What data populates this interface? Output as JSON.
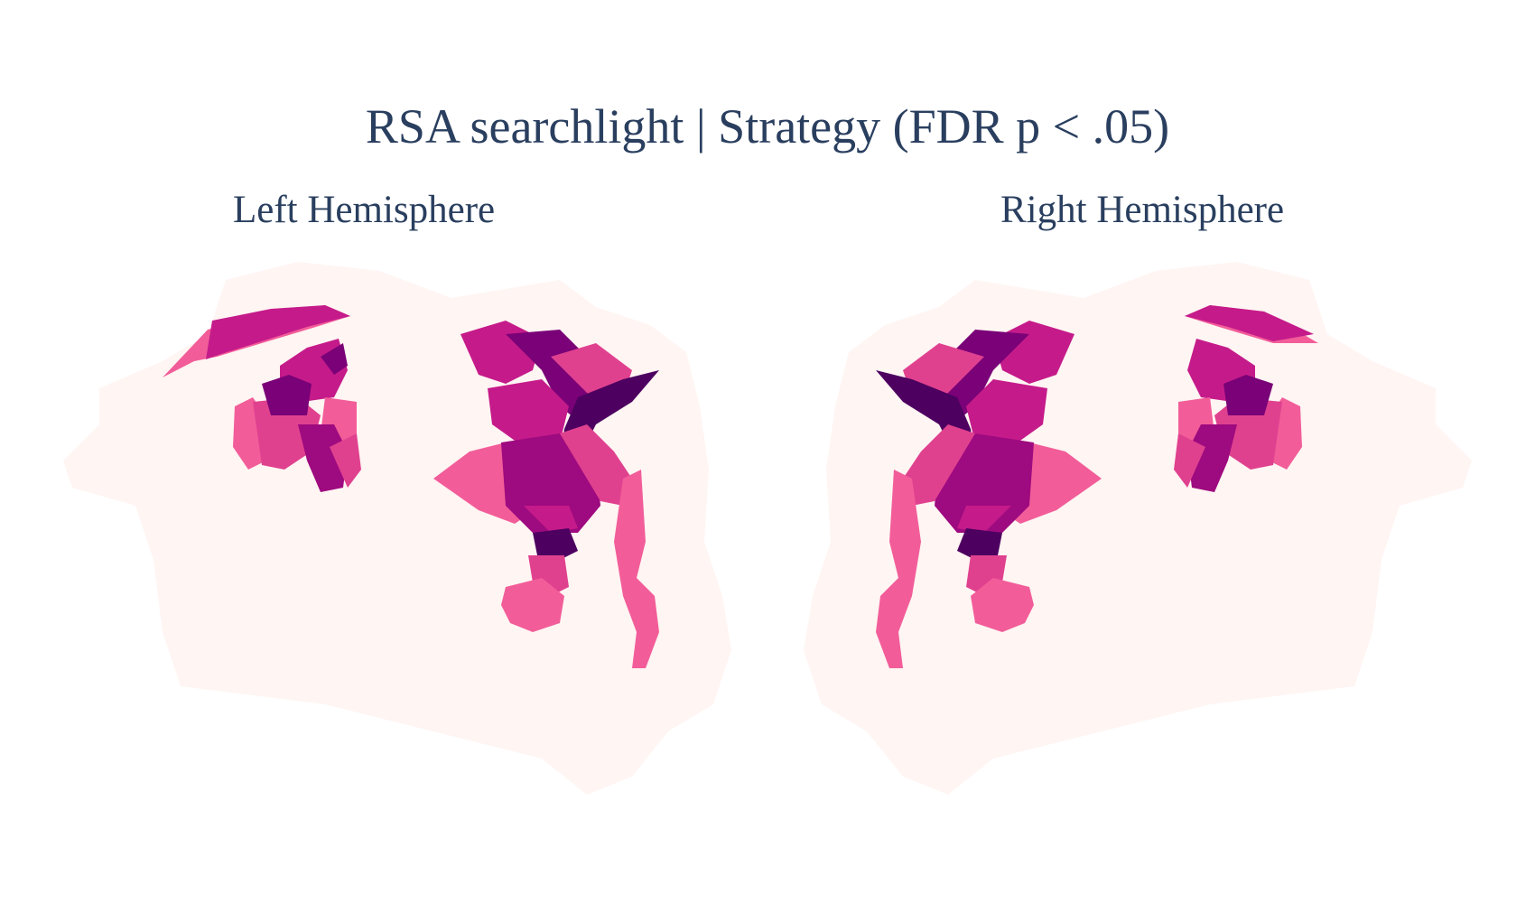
{
  "title": "RSA searchlight | Strategy (FDR p < .05)",
  "panels": [
    {
      "subtitle": "Left Hemisphere"
    },
    {
      "subtitle": "Right Hemisphere"
    }
  ],
  "colors": {
    "surface": "#fff5f3",
    "light_pink": "#f25d99",
    "pink": "#e0418f",
    "magenta": "#c51b8a",
    "dark_magenta": "#9e0a7f",
    "purple": "#7a0177",
    "dark_purple": "#4d0060"
  }
}
